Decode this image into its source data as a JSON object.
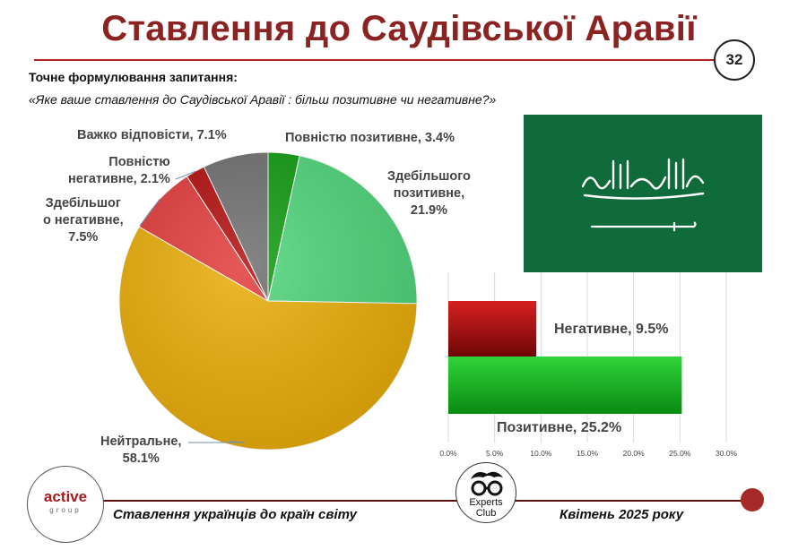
{
  "header": {
    "title": "Ставлення до Саудівської Аравії",
    "page_number": "32"
  },
  "question": {
    "heading": "Точне формулювання запитання:",
    "text": "«Яке ваше ставлення до Саудівської Аравії : більш позитивне чи негативне?»"
  },
  "chart_data": [
    {
      "type": "pie",
      "slices": [
        {
          "label_lines": [
            "Повністю позитивне, 3.4%"
          ],
          "value": 3.4,
          "color": "#109a10"
        },
        {
          "label_lines": [
            "Здебільшого",
            "позитивне,",
            "21.9%"
          ],
          "value": 21.9,
          "color": "#4fd47a"
        },
        {
          "label_lines": [
            "Нейтральне,",
            "58.1%"
          ],
          "value": 58.1,
          "color": "#e9ad08"
        },
        {
          "label_lines": [
            "Здебільшог",
            "о негативне,",
            "7.5%"
          ],
          "value": 7.5,
          "color": "#e23a3a"
        },
        {
          "label_lines": [
            "Повністю",
            "негативне, 2.1%"
          ],
          "value": 2.1,
          "color": "#b10d0d"
        },
        {
          "label_lines": [
            "Важко відповісти, 7.1%"
          ],
          "value": 7.1,
          "color": "#6e6e6e"
        }
      ]
    },
    {
      "type": "bar",
      "orientation": "horizontal",
      "categories": [
        "Негативне",
        "Позитивне"
      ],
      "series": [
        {
          "values": [
            9.5,
            25.2
          ]
        }
      ],
      "data_labels": [
        "Негативне, 9.5%",
        "Позитивне, 25.2%"
      ],
      "colors": [
        "#b80f0f",
        "#15b41c"
      ],
      "xlim": [
        0,
        30
      ],
      "x_ticks": [
        "0.0%",
        "5.0%",
        "10.0%",
        "15.0%",
        "20.0%",
        "25.0%",
        "30.0%"
      ],
      "grid": true
    }
  ],
  "footer": {
    "logo_main": "active",
    "logo_sub": "group",
    "club_line1": "Experts",
    "club_line2": "Club",
    "left_text": "Ставлення українців до країн світу",
    "right_text": "Квітень 2025 року"
  }
}
